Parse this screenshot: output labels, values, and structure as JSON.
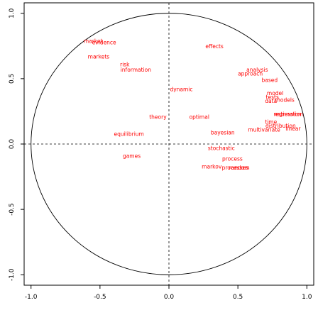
{
  "chart_data": {
    "type": "scatter",
    "title": "",
    "xlabel": "",
    "ylabel": "",
    "xlim": [
      -1.05,
      1.05
    ],
    "ylim": [
      -1.08,
      1.08
    ],
    "x_ticks": [
      "-1.0",
      "-0.5",
      "0.0",
      "0.5",
      "1.0"
    ],
    "y_ticks": [
      "-1.0",
      "-0.5",
      "0.0",
      "0.5",
      "1.0"
    ],
    "grid": false,
    "unit_circle": true,
    "reference_lines": [
      0,
      0
    ],
    "label_color": "#ff0000",
    "points": [
      {
        "label": "market",
        "x": -0.55,
        "y": 0.79
      },
      {
        "label": "evidence",
        "x": -0.47,
        "y": 0.78
      },
      {
        "label": "markets",
        "x": -0.51,
        "y": 0.67
      },
      {
        "label": "risk",
        "x": -0.32,
        "y": 0.61
      },
      {
        "label": "information",
        "x": -0.24,
        "y": 0.57
      },
      {
        "label": "effects",
        "x": 0.33,
        "y": 0.75
      },
      {
        "label": "analysis",
        "x": 0.64,
        "y": 0.57
      },
      {
        "label": "approach",
        "x": 0.59,
        "y": 0.54
      },
      {
        "label": "based",
        "x": 0.73,
        "y": 0.49
      },
      {
        "label": "dynamic",
        "x": 0.09,
        "y": 0.42
      },
      {
        "label": "model",
        "x": 0.77,
        "y": 0.39
      },
      {
        "label": "tests",
        "x": 0.75,
        "y": 0.36
      },
      {
        "label": "data",
        "x": 0.74,
        "y": 0.33
      },
      {
        "label": "models",
        "x": 0.84,
        "y": 0.34
      },
      {
        "label": "regression",
        "x": 0.86,
        "y": 0.23
      },
      {
        "label": "estimation",
        "x": 0.87,
        "y": 0.23
      },
      {
        "label": "theory",
        "x": -0.08,
        "y": 0.21
      },
      {
        "label": "optimal",
        "x": 0.22,
        "y": 0.21
      },
      {
        "label": "time",
        "x": 0.74,
        "y": 0.17
      },
      {
        "label": "distribution",
        "x": 0.81,
        "y": 0.14
      },
      {
        "label": "multivariate",
        "x": 0.69,
        "y": 0.11
      },
      {
        "label": "linear",
        "x": 0.9,
        "y": 0.12
      },
      {
        "label": "equilibrium",
        "x": -0.29,
        "y": 0.08
      },
      {
        "label": "bayesian",
        "x": 0.39,
        "y": 0.09
      },
      {
        "label": "stochastic",
        "x": 0.38,
        "y": -0.03
      },
      {
        "label": "games",
        "x": -0.27,
        "y": -0.09
      },
      {
        "label": "process",
        "x": 0.46,
        "y": -0.11
      },
      {
        "label": "markov",
        "x": 0.31,
        "y": -0.17
      },
      {
        "label": "processes",
        "x": 0.48,
        "y": -0.18
      },
      {
        "label": "random",
        "x": 0.51,
        "y": -0.18
      }
    ]
  }
}
